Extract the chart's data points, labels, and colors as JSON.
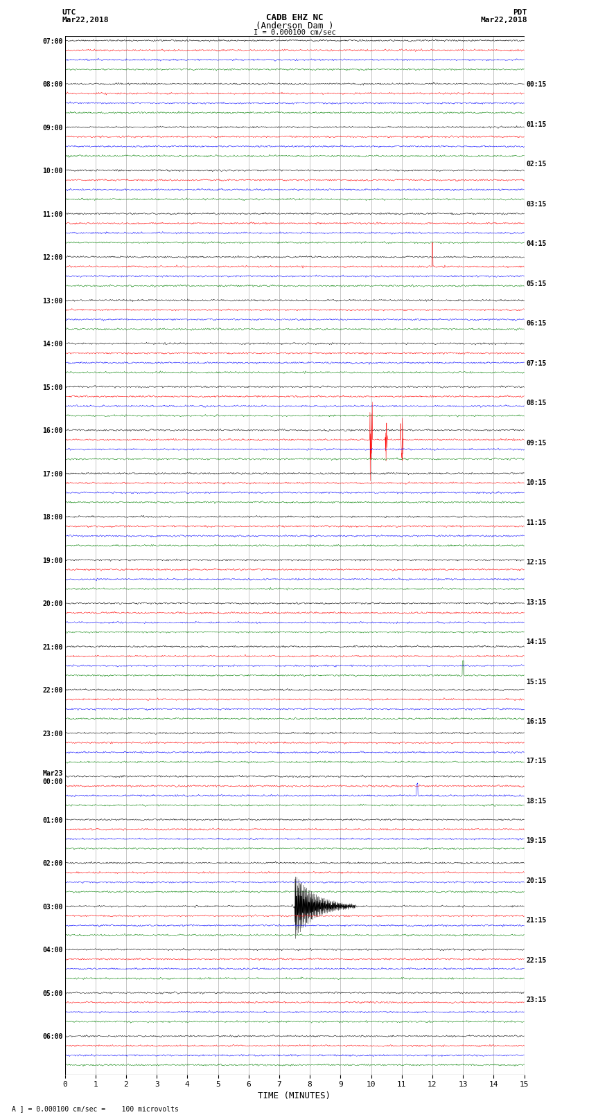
{
  "title_line1": "CADB EHZ NC",
  "title_line2": "(Anderson Dam )",
  "title_line3": "I = 0.000100 cm/sec",
  "left_header_line1": "UTC",
  "left_header_line2": "Mar22,2018",
  "right_header_line1": "PDT",
  "right_header_line2": "Mar22,2018",
  "xlabel": "TIME (MINUTES)",
  "footer": "A ] = 0.000100 cm/sec =    100 microvolts",
  "bg_color": "#ffffff",
  "trace_colors": [
    "black",
    "red",
    "blue",
    "green"
  ],
  "grid_color": "#999999",
  "utc_labels": [
    "07:00",
    "08:00",
    "09:00",
    "10:00",
    "11:00",
    "12:00",
    "13:00",
    "14:00",
    "15:00",
    "16:00",
    "17:00",
    "18:00",
    "19:00",
    "20:00",
    "21:00",
    "22:00",
    "23:00",
    "Mar23\n00:00",
    "01:00",
    "02:00",
    "03:00",
    "04:00",
    "05:00",
    "06:00"
  ],
  "pdt_labels": [
    "00:15",
    "01:15",
    "02:15",
    "03:15",
    "04:15",
    "05:15",
    "06:15",
    "07:15",
    "08:15",
    "09:15",
    "10:15",
    "11:15",
    "12:15",
    "13:15",
    "14:15",
    "15:15",
    "16:15",
    "17:15",
    "18:15",
    "19:15",
    "20:15",
    "21:15",
    "22:15",
    "23:15"
  ],
  "n_rows": 24,
  "minutes": 15,
  "noise_scale": 0.12,
  "seed": 42
}
